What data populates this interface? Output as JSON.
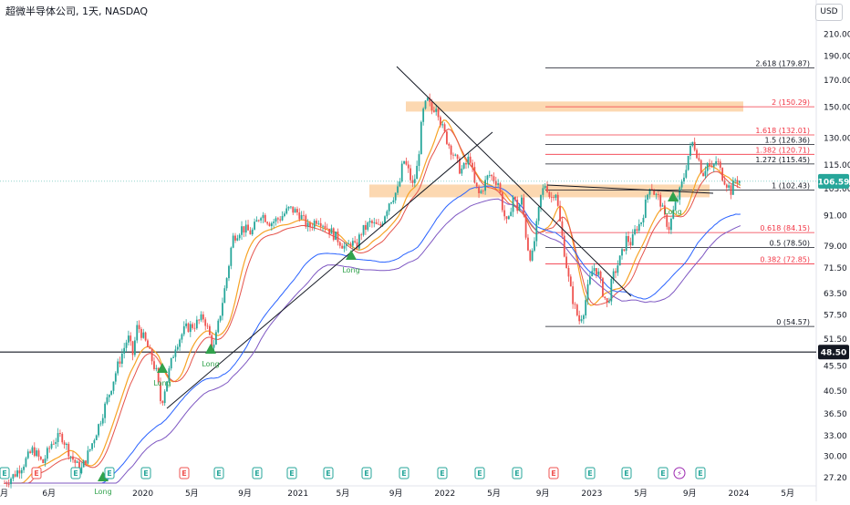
{
  "header": {
    "title": "超微半导体公司, 1天, NASDAQ",
    "currency": "USD"
  },
  "chart_data": {
    "type": "candlestick",
    "title": "超微半导体公司, 1天, NASDAQ",
    "y_scale": "log",
    "ylim": [
      26.5,
      228
    ],
    "y_ticks": [
      "210.00",
      "190.00",
      "170.00",
      "150.00",
      "130.00",
      "115.00",
      "103.00",
      "91.00",
      "79.00",
      "71.50",
      "63.50",
      "57.50",
      "51.50",
      "45.50",
      "40.50",
      "36.50",
      "33.00",
      "30.00",
      "27.20"
    ],
    "x_ticks": [
      "月",
      "6月",
      "2020",
      "5月",
      "9月",
      "2021",
      "5月",
      "9月",
      "2022",
      "5月",
      "9月",
      "2023",
      "5月",
      "9月",
      "2024",
      "5月"
    ],
    "last_price": "106.59",
    "last_price_color": "#26a69a",
    "horizontal_line": {
      "label": "48.50",
      "value": 48.5
    },
    "price_path": [
      [
        0.0,
        26.5
      ],
      [
        0.02,
        27.5
      ],
      [
        0.04,
        29
      ],
      [
        0.06,
        31
      ],
      [
        0.08,
        29
      ],
      [
        0.1,
        32
      ],
      [
        0.12,
        33
      ],
      [
        0.14,
        30
      ],
      [
        0.16,
        28
      ],
      [
        0.18,
        31
      ],
      [
        0.2,
        35
      ],
      [
        0.22,
        40
      ],
      [
        0.24,
        46
      ],
      [
        0.26,
        52
      ],
      [
        0.27,
        48
      ],
      [
        0.28,
        55
      ],
      [
        0.3,
        50
      ],
      [
        0.32,
        44
      ],
      [
        0.33,
        38
      ],
      [
        0.34,
        42
      ],
      [
        0.36,
        50
      ],
      [
        0.38,
        54
      ],
      [
        0.4,
        55
      ],
      [
        0.42,
        57
      ],
      [
        0.43,
        53
      ],
      [
        0.44,
        49
      ],
      [
        0.45,
        55
      ],
      [
        0.47,
        70
      ],
      [
        0.48,
        82
      ],
      [
        0.5,
        86
      ],
      [
        0.52,
        84
      ],
      [
        0.54,
        92
      ],
      [
        0.56,
        88
      ],
      [
        0.58,
        90
      ],
      [
        0.6,
        94
      ],
      [
        0.62,
        92
      ],
      [
        0.64,
        86
      ],
      [
        0.66,
        90
      ],
      [
        0.68,
        86
      ],
      [
        0.7,
        82
      ],
      [
        0.71,
        80
      ],
      [
        0.72,
        78
      ],
      [
        0.73,
        81
      ],
      [
        0.74,
        78
      ],
      [
        0.75,
        84
      ],
      [
        0.77,
        88
      ],
      [
        0.79,
        86
      ],
      [
        0.81,
        97
      ],
      [
        0.83,
        103
      ],
      [
        0.84,
        118
      ],
      [
        0.85,
        112
      ],
      [
        0.86,
        104
      ],
      [
        0.87,
        115
      ],
      [
        0.88,
        145
      ],
      [
        0.89,
        155
      ],
      [
        0.9,
        148
      ],
      [
        0.91,
        152
      ],
      [
        0.92,
        138
      ],
      [
        0.93,
        130
      ],
      [
        0.95,
        118
      ],
      [
        0.96,
        112
      ],
      [
        0.97,
        114
      ],
      [
        0.98,
        120
      ],
      [
        0.99,
        105
      ],
      [
        1.0,
        100
      ],
      [
        1.02,
        110
      ],
      [
        1.04,
        106
      ],
      [
        1.05,
        93
      ],
      [
        1.06,
        86
      ],
      [
        1.07,
        100
      ],
      [
        1.08,
        94
      ],
      [
        1.09,
        98
      ],
      [
        1.1,
        80
      ],
      [
        1.11,
        74
      ],
      [
        1.12,
        86
      ],
      [
        1.13,
        100
      ],
      [
        1.14,
        106
      ],
      [
        1.15,
        98
      ],
      [
        1.16,
        103
      ],
      [
        1.17,
        88
      ],
      [
        1.18,
        76
      ],
      [
        1.19,
        66
      ],
      [
        1.2,
        60
      ],
      [
        1.21,
        56
      ],
      [
        1.22,
        59
      ],
      [
        1.23,
        66
      ],
      [
        1.24,
        72
      ],
      [
        1.25,
        70
      ],
      [
        1.26,
        64
      ],
      [
        1.27,
        60
      ],
      [
        1.28,
        68
      ],
      [
        1.29,
        72
      ],
      [
        1.3,
        76
      ],
      [
        1.31,
        82
      ],
      [
        1.32,
        80
      ],
      [
        1.33,
        86
      ],
      [
        1.34,
        88
      ],
      [
        1.35,
        96
      ],
      [
        1.36,
        106
      ],
      [
        1.37,
        100
      ],
      [
        1.38,
        98
      ],
      [
        1.39,
        90
      ],
      [
        1.4,
        86
      ],
      [
        1.41,
        94
      ],
      [
        1.42,
        100
      ],
      [
        1.43,
        108
      ],
      [
        1.44,
        120
      ],
      [
        1.45,
        128
      ],
      [
        1.46,
        120
      ],
      [
        1.47,
        110
      ],
      [
        1.48,
        116
      ],
      [
        1.49,
        112
      ],
      [
        1.5,
        118
      ],
      [
        1.51,
        110
      ],
      [
        1.52,
        106
      ],
      [
        1.53,
        102
      ],
      [
        1.54,
        108
      ],
      [
        1.55,
        106.59
      ]
    ],
    "fib_levels": [
      {
        "label": "2.618 (179.87)",
        "value": 179.87,
        "color": "#131722"
      },
      {
        "label": "2 (150.29)",
        "value": 150.29,
        "color": "#f23645"
      },
      {
        "label": "1.618 (132.01)",
        "value": 132.01,
        "color": "#f23645"
      },
      {
        "label": "1.5 (126.36)",
        "value": 126.36,
        "color": "#131722"
      },
      {
        "label": "1.382 (120.71)",
        "value": 120.71,
        "color": "#f23645"
      },
      {
        "label": "1.272 (115.45)",
        "value": 115.45,
        "color": "#131722"
      },
      {
        "label": "1 (102.43)",
        "value": 102.43,
        "color": "#131722"
      },
      {
        "label": "0.618 (84.15)",
        "value": 84.15,
        "color": "#f23645"
      },
      {
        "label": "0.5 (78.50)",
        "value": 78.5,
        "color": "#131722"
      },
      {
        "label": "0.382 (72.85)",
        "value": 72.85,
        "color": "#f23645"
      },
      {
        "label": "0 (54.57)",
        "value": 54.57,
        "color": "#131722"
      }
    ],
    "zones": [
      {
        "name": "upper-zone",
        "value_low": 147,
        "value_high": 154
      },
      {
        "name": "lower-zone",
        "value_low": 99,
        "value_high": 105
      }
    ],
    "signals": [
      {
        "label": "Long",
        "x": 0.2,
        "y": 27.3
      },
      {
        "label": "Long",
        "x": 0.46,
        "y": 47
      },
      {
        "label": "Long",
        "x": 0.33,
        "y": 42
      },
      {
        "label": "Long",
        "x": 0.73,
        "y": 72
      },
      {
        "label": "Long",
        "x": 1.49,
        "y": 96
      }
    ],
    "event_markers": [
      "E",
      "E",
      "E",
      "E",
      "E",
      "E",
      "E",
      "E",
      "E",
      "E",
      "E",
      "E",
      "E",
      "E",
      "E",
      "E",
      "E",
      "E",
      "E",
      "E",
      "E"
    ],
    "colors": {
      "up": "#26a69a",
      "down": "#ef5350",
      "ma_orange": "#f7a325",
      "ma_red": "#e5534b",
      "ma_blue": "#2962ff",
      "ma_purple": "#7e57c2",
      "zone": "#f9b871",
      "signal": "#31a24c"
    }
  }
}
